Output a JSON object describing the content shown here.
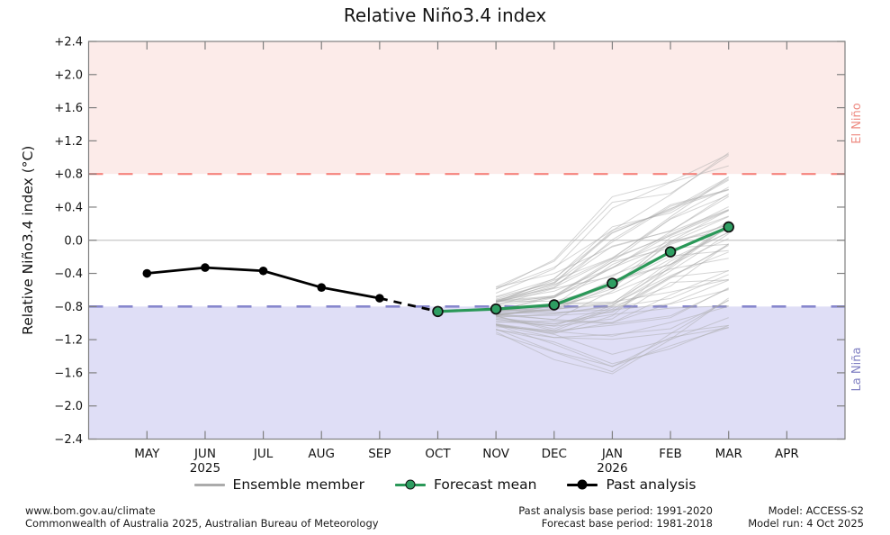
{
  "title": "Relative Niño3.4 index",
  "colors": {
    "el-nino-band": "#fcebe9",
    "la-nina-band": "#dfdef6",
    "el-nino-line": "#f5847d",
    "la-nina-line": "#8787cd",
    "el-nino-label": "#ee8b82",
    "la-nina-label": "#8181c3",
    "zero-line": "#c8c8c8",
    "axis": "#7f7f7f",
    "ensemble": "#ababab",
    "forecast": "#2a9858",
    "forecast-marker": "#2e9e62",
    "past": "#000000"
  },
  "chart_data": {
    "type": "line",
    "title": "Relative Niño3.4 index",
    "ylabel": "Relative Niño3.4 index (°C)",
    "ylim": [
      -2.4,
      2.4
    ],
    "grid": "zero-line only",
    "y_ticks": [
      {
        "label": "+2.4",
        "value": 2.4
      },
      {
        "label": "+2.0",
        "value": 2.0
      },
      {
        "label": "+1.6",
        "value": 1.6
      },
      {
        "label": "+1.2",
        "value": 1.2
      },
      {
        "label": "+0.8",
        "value": 0.8
      },
      {
        "label": "+0.4",
        "value": 0.4
      },
      {
        "label": "0.0",
        "value": 0.0
      },
      {
        "label": "−0.4",
        "value": -0.4
      },
      {
        "label": "−0.8",
        "value": -0.8
      },
      {
        "label": "−1.2",
        "value": -1.2
      },
      {
        "label": "−1.6",
        "value": -1.6
      },
      {
        "label": "−2.0",
        "value": -2.0
      },
      {
        "label": "−2.4",
        "value": -2.4
      }
    ],
    "x_categories": [
      "MAY",
      "JUN",
      "JUL",
      "AUG",
      "SEP",
      "OCT",
      "NOV",
      "DEC",
      "JAN",
      "FEB",
      "MAR",
      "APR"
    ],
    "x_year_labels": [
      {
        "month": "JUN",
        "label": "2025"
      },
      {
        "month": "JAN",
        "label": "2026"
      }
    ],
    "thresholds": {
      "el_nino": 0.8,
      "la_nina": -0.8
    },
    "region_labels": [
      {
        "text": "El Niño",
        "side": "right",
        "band": "upper"
      },
      {
        "text": "La Niña",
        "side": "right",
        "band": "lower"
      }
    ],
    "series": [
      {
        "name": "Past analysis",
        "style": "past",
        "x": [
          "MAY",
          "JUN",
          "JUL",
          "AUG",
          "SEP"
        ],
        "values": [
          -0.4,
          -0.33,
          -0.37,
          -0.57,
          -0.7
        ],
        "preliminary": {
          "x": "OCT",
          "value": -0.86,
          "dashed": true
        }
      },
      {
        "name": "Forecast mean",
        "style": "forecast",
        "x": [
          "OCT",
          "NOV",
          "DEC",
          "JAN",
          "FEB",
          "MAR"
        ],
        "values": [
          -0.86,
          -0.83,
          -0.78,
          -0.52,
          -0.14,
          0.16
        ]
      },
      {
        "name": "Ensemble member",
        "style": "ensemble",
        "x": [
          "NOV",
          "DEC",
          "JAN",
          "FEB",
          "MAR"
        ],
        "count": 60,
        "envelope_min": [
          -1.15,
          -1.45,
          -1.6,
          -1.35,
          -1.05
        ],
        "envelope_max": [
          -0.45,
          -0.08,
          0.55,
          0.72,
          1.05
        ],
        "mean": [
          -0.83,
          -0.78,
          -0.52,
          -0.14,
          0.16
        ]
      }
    ],
    "legend_position": "bottom"
  },
  "legend": {
    "items": [
      {
        "label": "Ensemble member",
        "style": "ensemble"
      },
      {
        "label": "Forecast mean",
        "style": "forecast"
      },
      {
        "label": "Past analysis",
        "style": "past"
      }
    ]
  },
  "footer": {
    "left": [
      "www.bom.gov.au/climate",
      "Commonwealth of Australia 2025, Australian Bureau of Meteorology"
    ],
    "center": [
      "Past analysis base period: 1991-2020",
      "Forecast base period: 1981-2018"
    ],
    "right": [
      "Model: ACCESS-S2",
      "Model run: 4 Oct 2025"
    ]
  }
}
